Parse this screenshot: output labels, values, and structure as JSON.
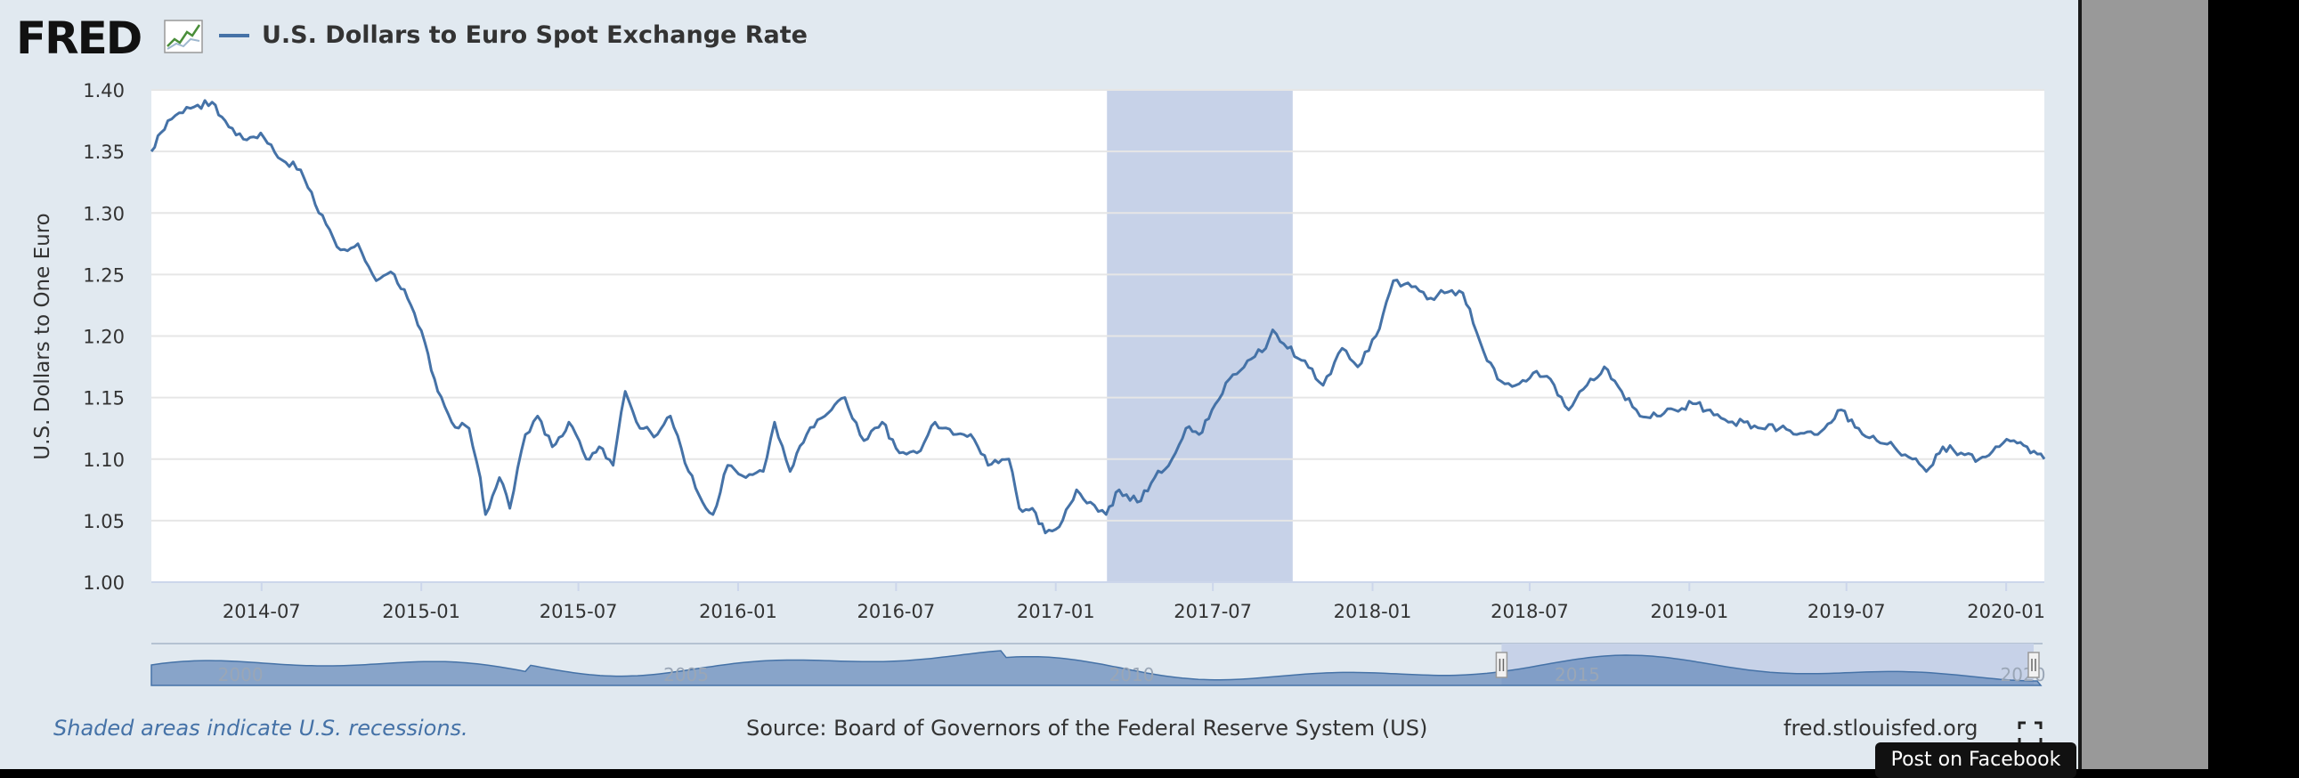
{
  "logo": {
    "text": "FRED",
    "icon": "fred-graph-icon"
  },
  "legend": {
    "label": "U.S. Dollars to Euro Spot Exchange Rate",
    "color": "#4572a7"
  },
  "chart_data": {
    "type": "line",
    "title": "U.S. Dollars to Euro Spot Exchange Rate",
    "ylabel": "U.S. Dollars to One Euro",
    "xlabel": "",
    "ylim": [
      1.0,
      1.4
    ],
    "xlim": [
      "2014-02-24",
      "2020-02-14"
    ],
    "y_ticks": [
      "1.00",
      "1.05",
      "1.10",
      "1.15",
      "1.20",
      "1.25",
      "1.30",
      "1.35",
      "1.40"
    ],
    "x_ticks": [
      {
        "date": "2014-07-01",
        "label": "2014-07"
      },
      {
        "date": "2015-01-01",
        "label": "2015-01"
      },
      {
        "date": "2015-07-01",
        "label": "2015-07"
      },
      {
        "date": "2016-01-01",
        "label": "2016-01"
      },
      {
        "date": "2016-07-01",
        "label": "2016-07"
      },
      {
        "date": "2017-01-01",
        "label": "2017-01"
      },
      {
        "date": "2017-07-01",
        "label": "2017-07"
      },
      {
        "date": "2018-01-01",
        "label": "2018-01"
      },
      {
        "date": "2018-07-01",
        "label": "2018-07"
      },
      {
        "date": "2019-01-01",
        "label": "2019-01"
      },
      {
        "date": "2019-07-01",
        "label": "2019-07"
      },
      {
        "date": "2020-01-01",
        "label": "2020-01"
      }
    ],
    "shaded_band": {
      "start": "2017-03-01",
      "end": "2017-10-01",
      "color": "#c7d2e8"
    },
    "grid": true,
    "series": [
      {
        "color": "#4572a7",
        "points": [
          [
            "2014-02-24",
            1.35
          ],
          [
            "2014-03-15",
            1.375
          ],
          [
            "2014-04-10",
            1.385
          ],
          [
            "2014-05-05",
            1.39
          ],
          [
            "2014-05-20",
            1.375
          ],
          [
            "2014-06-10",
            1.36
          ],
          [
            "2014-06-30",
            1.365
          ],
          [
            "2014-07-20",
            1.345
          ],
          [
            "2014-08-15",
            1.335
          ],
          [
            "2014-09-05",
            1.3
          ],
          [
            "2014-09-30",
            1.27
          ],
          [
            "2014-10-20",
            1.275
          ],
          [
            "2014-11-10",
            1.245
          ],
          [
            "2014-12-01",
            1.25
          ],
          [
            "2014-12-20",
            1.225
          ],
          [
            "2015-01-05",
            1.195
          ],
          [
            "2015-01-20",
            1.155
          ],
          [
            "2015-02-05",
            1.13
          ],
          [
            "2015-02-25",
            1.125
          ],
          [
            "2015-03-10",
            1.085
          ],
          [
            "2015-03-16",
            1.055
          ],
          [
            "2015-04-01",
            1.085
          ],
          [
            "2015-04-13",
            1.06
          ],
          [
            "2015-05-01",
            1.12
          ],
          [
            "2015-05-15",
            1.135
          ],
          [
            "2015-06-01",
            1.11
          ],
          [
            "2015-06-20",
            1.13
          ],
          [
            "2015-07-10",
            1.1
          ],
          [
            "2015-07-25",
            1.11
          ],
          [
            "2015-08-10",
            1.095
          ],
          [
            "2015-08-24",
            1.155
          ],
          [
            "2015-09-10",
            1.125
          ],
          [
            "2015-09-30",
            1.12
          ],
          [
            "2015-10-15",
            1.135
          ],
          [
            "2015-11-05",
            1.09
          ],
          [
            "2015-11-25",
            1.06
          ],
          [
            "2015-12-03",
            1.055
          ],
          [
            "2015-12-20",
            1.095
          ],
          [
            "2016-01-10",
            1.085
          ],
          [
            "2016-01-30",
            1.09
          ],
          [
            "2016-02-12",
            1.13
          ],
          [
            "2016-03-01",
            1.09
          ],
          [
            "2016-03-20",
            1.12
          ],
          [
            "2016-04-10",
            1.135
          ],
          [
            "2016-05-03",
            1.15
          ],
          [
            "2016-05-25",
            1.115
          ],
          [
            "2016-06-15",
            1.13
          ],
          [
            "2016-07-05",
            1.105
          ],
          [
            "2016-07-25",
            1.105
          ],
          [
            "2016-08-15",
            1.13
          ],
          [
            "2016-09-05",
            1.12
          ],
          [
            "2016-09-25",
            1.12
          ],
          [
            "2016-10-15",
            1.095
          ],
          [
            "2016-11-08",
            1.1
          ],
          [
            "2016-11-20",
            1.06
          ],
          [
            "2016-12-05",
            1.06
          ],
          [
            "2016-12-20",
            1.04
          ],
          [
            "2017-01-05",
            1.045
          ],
          [
            "2017-01-25",
            1.075
          ],
          [
            "2017-02-10",
            1.065
          ],
          [
            "2017-02-28",
            1.055
          ],
          [
            "2017-03-15",
            1.075
          ],
          [
            "2017-04-05",
            1.065
          ],
          [
            "2017-04-25",
            1.085
          ],
          [
            "2017-05-15",
            1.1
          ],
          [
            "2017-05-31",
            1.125
          ],
          [
            "2017-06-15",
            1.12
          ],
          [
            "2017-06-30",
            1.14
          ],
          [
            "2017-07-20",
            1.165
          ],
          [
            "2017-08-10",
            1.18
          ],
          [
            "2017-08-31",
            1.19
          ],
          [
            "2017-09-08",
            1.205
          ],
          [
            "2017-09-25",
            1.19
          ],
          [
            "2017-10-15",
            1.18
          ],
          [
            "2017-11-05",
            1.16
          ],
          [
            "2017-11-27",
            1.19
          ],
          [
            "2017-12-15",
            1.175
          ],
          [
            "2018-01-05",
            1.2
          ],
          [
            "2018-01-25",
            1.245
          ],
          [
            "2018-02-15",
            1.24
          ],
          [
            "2018-03-05",
            1.23
          ],
          [
            "2018-03-25",
            1.235
          ],
          [
            "2018-04-15",
            1.235
          ],
          [
            "2018-05-05",
            1.195
          ],
          [
            "2018-05-25",
            1.165
          ],
          [
            "2018-06-15",
            1.16
          ],
          [
            "2018-07-05",
            1.17
          ],
          [
            "2018-07-25",
            1.165
          ],
          [
            "2018-08-15",
            1.14
          ],
          [
            "2018-09-05",
            1.16
          ],
          [
            "2018-09-25",
            1.175
          ],
          [
            "2018-10-15",
            1.155
          ],
          [
            "2018-11-05",
            1.135
          ],
          [
            "2018-11-25",
            1.135
          ],
          [
            "2018-12-15",
            1.14
          ],
          [
            "2019-01-05",
            1.145
          ],
          [
            "2019-01-25",
            1.14
          ],
          [
            "2019-02-15",
            1.13
          ],
          [
            "2019-03-05",
            1.13
          ],
          [
            "2019-03-25",
            1.125
          ],
          [
            "2019-04-15",
            1.125
          ],
          [
            "2019-05-05",
            1.12
          ],
          [
            "2019-05-25",
            1.12
          ],
          [
            "2019-06-25",
            1.14
          ],
          [
            "2019-07-15",
            1.125
          ],
          [
            "2019-08-05",
            1.115
          ],
          [
            "2019-08-25",
            1.11
          ],
          [
            "2019-09-15",
            1.1
          ],
          [
            "2019-10-01",
            1.09
          ],
          [
            "2019-10-20",
            1.11
          ],
          [
            "2019-11-10",
            1.105
          ],
          [
            "2019-12-01",
            1.1
          ],
          [
            "2019-12-20",
            1.11
          ],
          [
            "2020-01-10",
            1.115
          ],
          [
            "2020-01-25",
            1.11
          ],
          [
            "2020-02-14",
            1.1
          ]
        ]
      }
    ]
  },
  "navigator": {
    "labels": [
      "2000",
      "2005",
      "2010",
      "2015",
      "2020"
    ],
    "range_start_year": 1999,
    "range_end_year": 2020.2,
    "selected_start_year": 2014.15,
    "selected_end_year": 2020.12
  },
  "footer": {
    "note": "Shaded areas indicate U.S. recessions.",
    "source": "Source: Board of Governors of the Federal Reserve System (US)",
    "site": "fred.stlouisfed.org",
    "fullscreen_icon": "fullscreen-icon",
    "post_button": "Post on Facebook"
  }
}
